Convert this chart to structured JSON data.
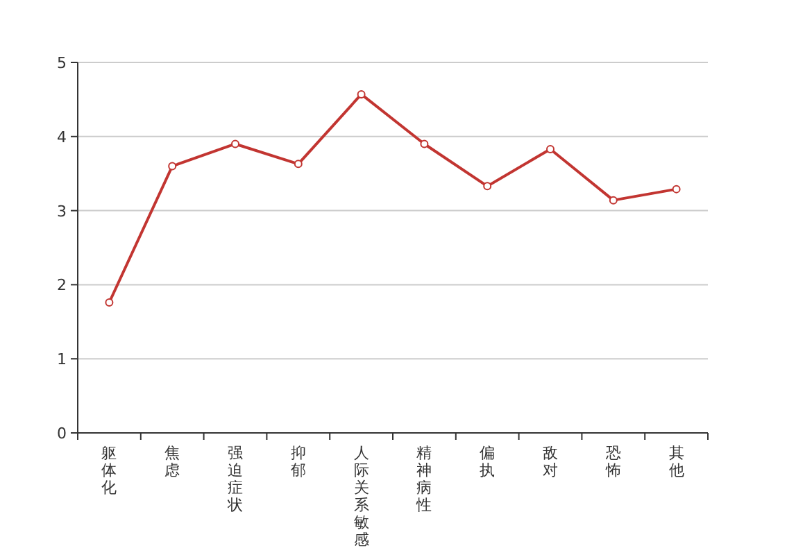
{
  "chart_data": {
    "type": "line",
    "categories": [
      "躯体化",
      "焦虑",
      "强迫症状",
      "抑郁",
      "人际关系敏感",
      "精神病性",
      "偏执",
      "敌对",
      "恐怖",
      "其他"
    ],
    "series": [
      {
        "color": "#c23531",
        "values": [
          1.76,
          3.6,
          3.9,
          3.63,
          4.57,
          3.9,
          3.33,
          3.83,
          3.14,
          3.29
        ]
      }
    ],
    "ylim": [
      0,
      5
    ],
    "yticks": [
      0,
      1,
      2,
      3,
      4,
      5
    ],
    "grid": "y",
    "marker": "circle",
    "line_style": "solid"
  }
}
